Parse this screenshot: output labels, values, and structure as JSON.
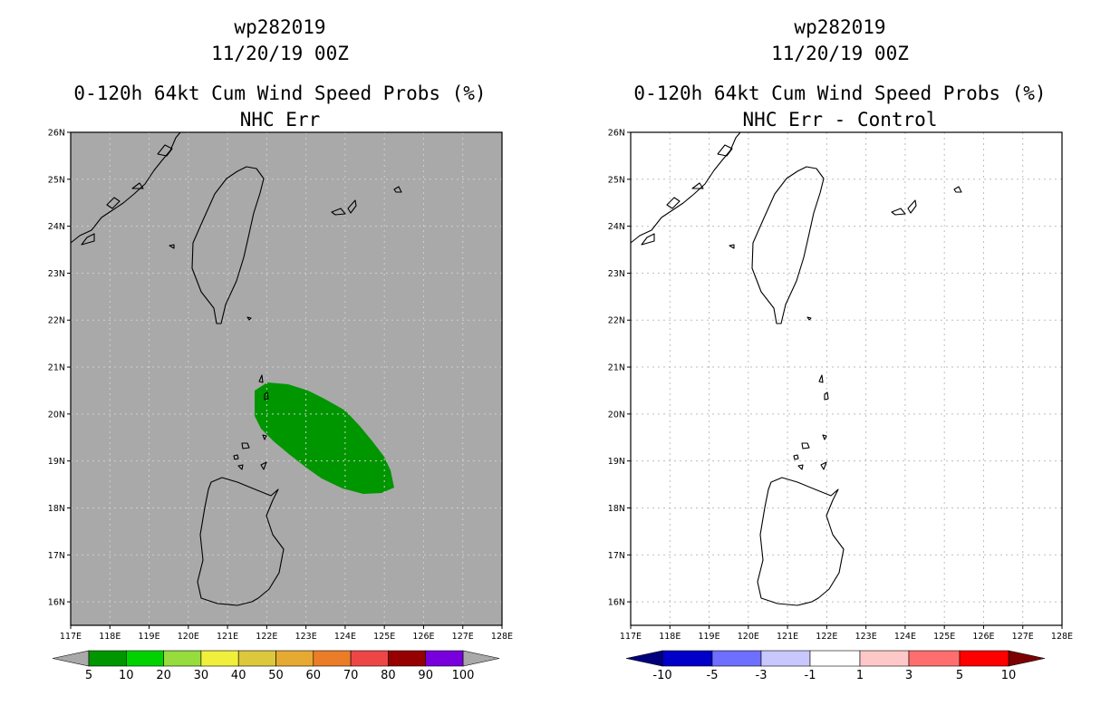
{
  "panels": [
    {
      "id": "left",
      "title1": "wp282019",
      "title2": "11/20/19 00Z",
      "title3": "0-120h 64kt Cum Wind Speed Probs (%)",
      "title4": "NHC Err",
      "background": "#a9a9a9",
      "colorbar": {
        "type": "sequential",
        "labels": [
          "5",
          "10",
          "20",
          "30",
          "40",
          "50",
          "60",
          "70",
          "80",
          "90",
          "100"
        ],
        "colors": [
          "#009600",
          "#00d200",
          "#96dc3c",
          "#f0f03c",
          "#dcc83c",
          "#e6aa32",
          "#eb7d28",
          "#ee4646",
          "#960000",
          "#7800dc"
        ],
        "under_color": "#a9a9a9",
        "over_color": "#a9a9a9"
      },
      "shaded_region": {
        "label": "5-10 %",
        "color": "#009600"
      }
    },
    {
      "id": "right",
      "title1": "wp282019",
      "title2": "11/20/19 00Z",
      "title3": "0-120h 64kt Cum Wind Speed Probs (%)",
      "title4": "NHC Err - Control",
      "background": "#ffffff",
      "colorbar": {
        "type": "diverging",
        "labels": [
          "-10",
          "-5",
          "-3",
          "-1",
          "1",
          "3",
          "5",
          "10"
        ],
        "colors": [
          "#0000c8",
          "#6e6eff",
          "#c8c8ff",
          "#ffffff",
          "#ffc8c8",
          "#ff6e6e",
          "#ff0000"
        ],
        "under_color": "#00007d",
        "over_color": "#7d0000"
      }
    }
  ],
  "lon_labels": [
    "117E",
    "118E",
    "119E",
    "120E",
    "121E",
    "122E",
    "123E",
    "124E",
    "125E",
    "126E",
    "127E",
    "128E"
  ],
  "lat_labels": [
    "16N",
    "17N",
    "18N",
    "19N",
    "20N",
    "21N",
    "22N",
    "23N",
    "24N",
    "25N",
    "26N"
  ],
  "map_extent": {
    "lon_min": 117,
    "lon_max": 128,
    "lat_min": 15.5,
    "lat_max": 26
  },
  "gridlines": true
}
